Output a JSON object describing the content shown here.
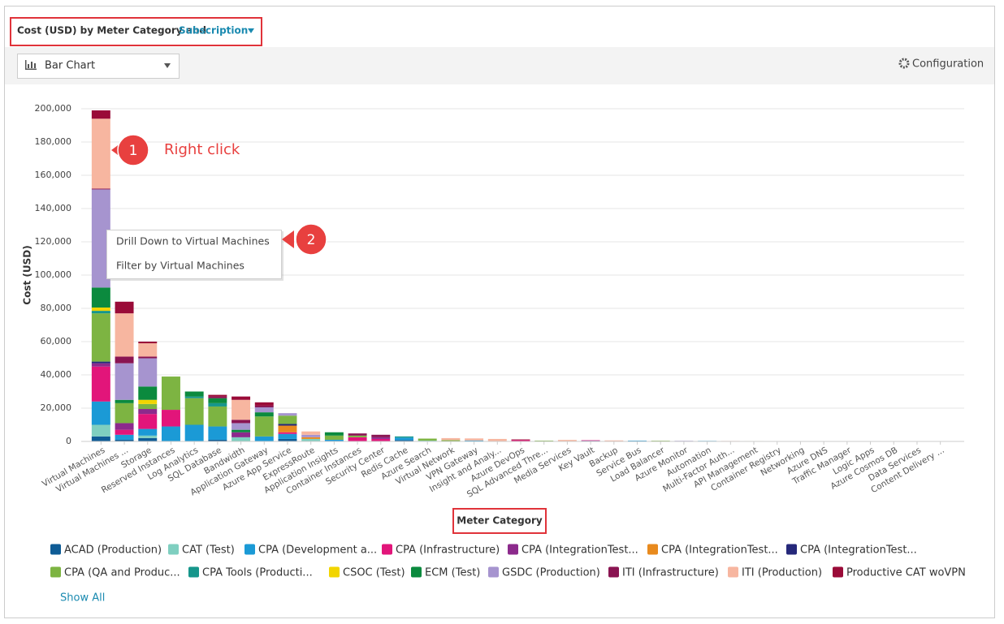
{
  "header": {
    "title": "Cost (USD) by Meter Category and",
    "link": "Subscription"
  },
  "toolbar": {
    "chart_type": "Bar Chart",
    "configuration": "Configuration"
  },
  "context_menu": {
    "items": [
      "Drill Down to Virtual Machines",
      "Filter by Virtual Machines"
    ]
  },
  "annotations": [
    {
      "label": "1",
      "text": "Right click"
    },
    {
      "label": "2"
    }
  ],
  "legend": {
    "show_all": "Show All"
  },
  "chart_data": {
    "type": "bar",
    "stacked": true,
    "grid": true,
    "ylabel": "Cost (USD)",
    "xlabel": "Meter Category",
    "ylim": [
      0,
      200000
    ],
    "yticks": [
      0,
      {
        "value": 20000,
        "label": "20,000"
      },
      {
        "value": 40000,
        "label": "40,000"
      },
      {
        "value": 60000,
        "label": "60,000"
      },
      {
        "value": 80000,
        "label": "80,000"
      },
      {
        "value": 100000,
        "label": "100,000"
      },
      {
        "value": 120000,
        "label": "120,000"
      },
      {
        "value": 140000,
        "label": "140,000"
      },
      {
        "value": 160000,
        "label": "160,000"
      },
      {
        "value": 180000,
        "label": "180,000"
      },
      {
        "value": 200000,
        "label": "200,000"
      }
    ],
    "categories": [
      "Virtual Machines",
      "Virtual Machines ...",
      "Storage",
      "Reserved Instances",
      "Log Analytics",
      "SQL Database",
      "Bandwidth",
      "Application Gateway",
      "Azure App Service",
      "ExpressRoute",
      "Application Insights",
      "Container Instances",
      "Security Center",
      "Redis Cache",
      "Azure Search",
      "Virtual Network",
      "VPN Gateway",
      "Insight and Analy...",
      "Azure DevOps",
      "SQL Advanced Thre...",
      "Media Services",
      "Key Vault",
      "Backup",
      "Service Bus",
      "Load Balancer",
      "Azure Monitor",
      "Automation",
      "Multi-Factor Auth...",
      "API Management",
      "Container Registry",
      "Networking",
      "Azure DNS",
      "Traffic Manager",
      "Logic Apps",
      "Azure Cosmos DB",
      "Data Services",
      "Content Delivery ..."
    ],
    "series": [
      {
        "name": "ACAD (Production)",
        "color": "#0f5c96",
        "values": [
          3000,
          1000,
          2000,
          0,
          0,
          1000,
          0,
          0,
          1500,
          0,
          0,
          0,
          0,
          800,
          0,
          0,
          0,
          0,
          0,
          0,
          0,
          400,
          0,
          0,
          0,
          0,
          0,
          0,
          0,
          0,
          0,
          0,
          0,
          0,
          0,
          0,
          0
        ]
      },
      {
        "name": "CAT (Test)",
        "color": "#7fcfc0",
        "values": [
          7000,
          0,
          1500,
          0,
          0,
          0,
          2500,
          0,
          0,
          1500,
          0,
          0,
          0,
          0,
          500,
          0,
          0,
          0,
          0,
          0,
          0,
          0,
          0,
          0,
          0,
          0,
          0,
          0,
          0,
          0,
          0,
          0,
          0,
          0,
          0,
          0,
          0
        ]
      },
      {
        "name": "CPA (Development a...",
        "color": "#1b9ad6",
        "values": [
          14000,
          3000,
          4000,
          9000,
          10000,
          8000,
          0,
          3000,
          3000,
          0,
          1000,
          0,
          0,
          1500,
          0,
          0,
          600,
          0,
          0,
          0,
          0,
          0,
          0,
          500,
          0,
          0,
          350,
          0,
          0,
          200,
          150,
          100,
          80,
          0,
          40,
          0,
          20
        ]
      },
      {
        "name": "CPA (Infrastructure)",
        "color": "#e2157a",
        "values": [
          21000,
          3000,
          9000,
          10000,
          0,
          0,
          0,
          0,
          1000,
          0,
          0,
          2500,
          1500,
          0,
          0,
          0,
          0,
          0,
          800,
          0,
          0,
          300,
          0,
          0,
          0,
          0,
          0,
          0,
          0,
          0,
          0,
          0,
          0,
          0,
          0,
          0,
          0
        ]
      },
      {
        "name": "CPA (IntegrationTest...",
        "color": "#8c2a8c",
        "values": [
          2000,
          4000,
          3000,
          0,
          0,
          0,
          3000,
          0,
          0,
          0,
          0,
          0,
          1000,
          0,
          0,
          0,
          0,
          0,
          0,
          0,
          0,
          0,
          0,
          0,
          0,
          0,
          0,
          0,
          0,
          0,
          0,
          0,
          0,
          0,
          0,
          0,
          0
        ]
      },
      {
        "name": "CPA (IntegrationTest...",
        "color": "#e88a1e",
        "values": [
          0,
          0,
          0,
          0,
          0,
          0,
          0,
          0,
          4000,
          1000,
          0,
          0,
          0,
          0,
          0,
          0,
          0,
          0,
          0,
          0,
          0,
          0,
          0,
          0,
          0,
          0,
          0,
          0,
          0,
          0,
          0,
          0,
          0,
          0,
          0,
          0,
          0
        ]
      },
      {
        "name": "CPA (IntegrationTest...",
        "color": "#25287a",
        "values": [
          1000,
          0,
          0,
          0,
          0,
          0,
          0,
          0,
          1000,
          0,
          0,
          0,
          0,
          0,
          0,
          0,
          0,
          0,
          0,
          0,
          0,
          0,
          0,
          0,
          0,
          0,
          0,
          0,
          0,
          0,
          0,
          0,
          0,
          0,
          0,
          0,
          0
        ]
      },
      {
        "name": "CPA (QA and Produc...",
        "color": "#7db442",
        "values": [
          29000,
          12000,
          3000,
          20000,
          16000,
          12000,
          0,
          12000,
          5000,
          0,
          2500,
          1000,
          0,
          0,
          1200,
          800,
          0,
          0,
          0,
          500,
          0,
          0,
          0,
          0,
          450,
          0,
          0,
          0,
          250,
          0,
          0,
          0,
          0,
          60,
          0,
          30,
          0
        ]
      },
      {
        "name": "CPA Tools (Producti...",
        "color": "#16968b",
        "values": [
          1500,
          0,
          0,
          0,
          1000,
          2000,
          0,
          0,
          0,
          0,
          0,
          0,
          0,
          700,
          0,
          0,
          0,
          0,
          0,
          0,
          0,
          0,
          0,
          0,
          0,
          0,
          0,
          0,
          0,
          0,
          0,
          0,
          0,
          0,
          0,
          0,
          0
        ]
      },
      {
        "name": "CSOC (Test)",
        "color": "#f2d500",
        "values": [
          2000,
          0,
          2500,
          0,
          0,
          0,
          0,
          0,
          0,
          0,
          0,
          0,
          0,
          0,
          0,
          0,
          0,
          0,
          0,
          0,
          0,
          0,
          0,
          0,
          0,
          0,
          0,
          0,
          0,
          0,
          0,
          0,
          0,
          0,
          0,
          0,
          0
        ]
      },
      {
        "name": "ECM (Test)",
        "color": "#0b8a3e",
        "values": [
          12000,
          2000,
          8000,
          0,
          3000,
          3000,
          1500,
          2500,
          0,
          0,
          2000,
          0,
          0,
          0,
          0,
          0,
          0,
          0,
          0,
          0,
          0,
          0,
          0,
          0,
          0,
          0,
          0,
          0,
          0,
          0,
          0,
          0,
          0,
          0,
          0,
          0,
          0
        ]
      },
      {
        "name": "GSDC (Production)",
        "color": "#a694cf",
        "values": [
          59000,
          22000,
          17000,
          0,
          0,
          0,
          4000,
          3000,
          1500,
          1500,
          0,
          0,
          0,
          0,
          0,
          0,
          0,
          0,
          0,
          0,
          0,
          0,
          0,
          0,
          0,
          400,
          0,
          0,
          0,
          0,
          0,
          0,
          0,
          0,
          0,
          0,
          0
        ]
      },
      {
        "name": "ITI (Infrastructure)",
        "color": "#8a1452",
        "values": [
          500,
          4000,
          1000,
          0,
          0,
          1000,
          2000,
          1000,
          0,
          0,
          0,
          1300,
          1500,
          0,
          0,
          0,
          0,
          0,
          0,
          0,
          0,
          0,
          0,
          0,
          0,
          0,
          0,
          0,
          0,
          0,
          0,
          0,
          0,
          0,
          0,
          0,
          0
        ]
      },
      {
        "name": "ITI (Production)",
        "color": "#f7b6a0",
        "values": [
          42000,
          26000,
          8000,
          0,
          0,
          0,
          12000,
          0,
          0,
          2000,
          0,
          0,
          0,
          0,
          0,
          1200,
          1200,
          1500,
          0,
          0,
          900,
          0,
          600,
          0,
          0,
          0,
          0,
          300,
          0,
          0,
          0,
          0,
          0,
          0,
          0,
          0,
          0
        ]
      },
      {
        "name": "Productive CAT woVPN",
        "color": "#9a0b38",
        "values": [
          5000,
          7000,
          1000,
          0,
          0,
          1000,
          2000,
          2000,
          0,
          0,
          0,
          0,
          0,
          0,
          0,
          0,
          0,
          0,
          400,
          0,
          0,
          0,
          0,
          0,
          0,
          0,
          0,
          0,
          0,
          0,
          0,
          0,
          0,
          0,
          0,
          0,
          0
        ]
      }
    ]
  }
}
